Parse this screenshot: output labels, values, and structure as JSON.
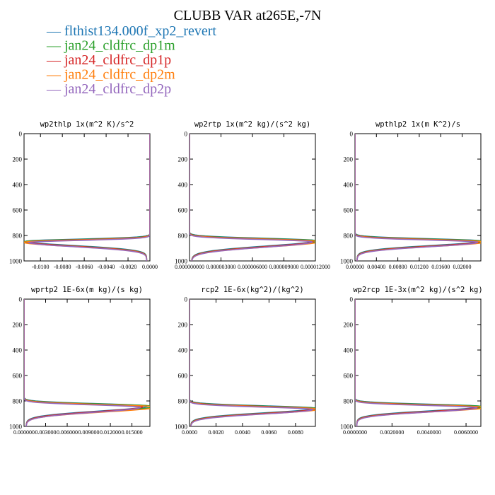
{
  "title": "CLUBB VAR at265E,-7N",
  "legend": [
    {
      "label": "flthist134.000f_xp2_revert",
      "color": "#1f77b4"
    },
    {
      "label": "jan24_cldfrc_dp1m",
      "color": "#2ca02c"
    },
    {
      "label": "jan24_cldfrc_dp1p",
      "color": "#d62728"
    },
    {
      "label": "jan24_cldfrc_dp2m",
      "color": "#ff7f0e"
    },
    {
      "label": "jan24_cldfrc_dp2p",
      "color": "#9467bd"
    }
  ],
  "legend_marker": "—",
  "chart_data": [
    {
      "type": "line",
      "title": "wp2thlp  1x(m^2 K)/s^2",
      "xlim": [
        -0.0115,
        0.0
      ],
      "ylim": [
        1000,
        0
      ],
      "xticks": [
        "-0.0100",
        "-0.0080",
        "-0.0060",
        "-0.0040",
        "-0.0020",
        "0.0000"
      ],
      "xtick_values": [
        -0.01,
        -0.008,
        -0.006,
        -0.004,
        -0.002,
        0.0
      ],
      "yticks": [
        "0",
        "200",
        "400",
        "600",
        "800",
        "1000"
      ],
      "profile": {
        "base": 0.0,
        "peak": -0.0113,
        "peak_p": 850,
        "up_w": 22,
        "lo_w": 48,
        "top_val": 0.0,
        "bot_val": -0.0003
      },
      "spread": [
        0,
        0.015,
        -0.01,
        0.025,
        -0.02
      ]
    },
    {
      "type": "line",
      "title": "wp2rtp  1x(m^2 kg)/(s^2 kg)",
      "xlim": [
        0.0,
        1.2e-05
      ],
      "ylim": [
        1000,
        0
      ],
      "xticks": [
        "0.000000000",
        "0.000003000",
        "0.000006000",
        "0.000009000",
        "0.000012000"
      ],
      "xtick_values": [
        0.0,
        3e-06,
        6e-06,
        9e-06,
        1.2e-05
      ],
      "yticks": [
        "0",
        "200",
        "400",
        "600",
        "800",
        "1000"
      ],
      "profile": {
        "base": 0.0,
        "peak": 1.2e-05,
        "peak_p": 845,
        "up_w": 25,
        "lo_w": 60,
        "top_val": 0.0,
        "bot_val": 2e-07
      },
      "spread": [
        0,
        0.02,
        -0.015,
        0.03,
        -0.025
      ]
    },
    {
      "type": "line",
      "title": "wpthlp2  1x(m K^2)/s",
      "xlim": [
        0.0,
        0.0235
      ],
      "ylim": [
        1000,
        0
      ],
      "xticks": [
        "0.00000",
        "0.00400",
        "0.00800",
        "0.01200",
        "0.01600",
        "0.02000"
      ],
      "xtick_values": [
        0.0,
        0.004,
        0.008,
        0.012,
        0.016,
        0.02
      ],
      "yticks": [
        "0",
        "200",
        "400",
        "600",
        "800",
        "1000"
      ],
      "profile": {
        "base": 0.0,
        "peak": 0.0235,
        "peak_p": 848,
        "up_w": 24,
        "lo_w": 50,
        "top_val": 0.0,
        "bot_val": 0.0004
      },
      "spread": [
        0,
        0.02,
        -0.015,
        0.03,
        -0.025
      ]
    },
    {
      "type": "line",
      "title": "wprtp2  1E-6x(m kg)/(s kg)",
      "xlim": [
        0.0,
        0.0175
      ],
      "ylim": [
        1000,
        0
      ],
      "xticks": [
        "0.000000",
        "0.003000",
        "0.006000",
        "0.009000",
        "0.012000",
        "0.015000"
      ],
      "xtick_values": [
        0.0,
        0.003,
        0.006,
        0.009,
        0.012,
        0.015
      ],
      "yticks": [
        "0",
        "200",
        "400",
        "600",
        "800",
        "1000"
      ],
      "profile": {
        "base": 0.0,
        "peak": 0.0172,
        "peak_p": 845,
        "up_w": 26,
        "lo_w": 55,
        "top_val": 0.0,
        "bot_val": 0.0003
      },
      "spread": [
        0,
        0.05,
        -0.04,
        0.07,
        -0.06
      ]
    },
    {
      "type": "line",
      "title": "rcp2  1E-6x(kg^2)/(kg^2)",
      "xlim": [
        0.0,
        0.0095
      ],
      "ylim": [
        1000,
        0
      ],
      "xticks": [
        "0.0000",
        "0.0020",
        "0.0040",
        "0.0060",
        "0.0080"
      ],
      "xtick_values": [
        0.0,
        0.002,
        0.004,
        0.006,
        0.008
      ],
      "yticks": [
        "0",
        "200",
        "400",
        "600",
        "800",
        "1000"
      ],
      "profile": {
        "base": 0.0,
        "peak": 0.0095,
        "peak_p": 862,
        "up_w": 26,
        "lo_w": 50,
        "top_val": 0.0,
        "bot_val": 0.0001
      },
      "spread": [
        0,
        0.015,
        -0.01,
        0.025,
        -0.02
      ]
    },
    {
      "type": "line",
      "title": "wp2rcp  1E-3x(m^2 kg)/(s^2 kg)",
      "xlim": [
        0.0,
        0.0068
      ],
      "ylim": [
        1000,
        0
      ],
      "xticks": [
        "0.0000000",
        "0.0020000",
        "0.0040000",
        "0.0060000"
      ],
      "xtick_values": [
        0.0,
        0.002,
        0.004,
        0.006
      ],
      "yticks": [
        "0",
        "200",
        "400",
        "600",
        "800",
        "1000"
      ],
      "profile": {
        "base": 0.0,
        "peak": 0.0068,
        "peak_p": 848,
        "up_w": 24,
        "lo_w": 48,
        "top_val": 0.0,
        "bot_val": 0.0001
      },
      "spread": [
        0,
        0.03,
        -0.02,
        0.04,
        -0.03
      ]
    }
  ]
}
